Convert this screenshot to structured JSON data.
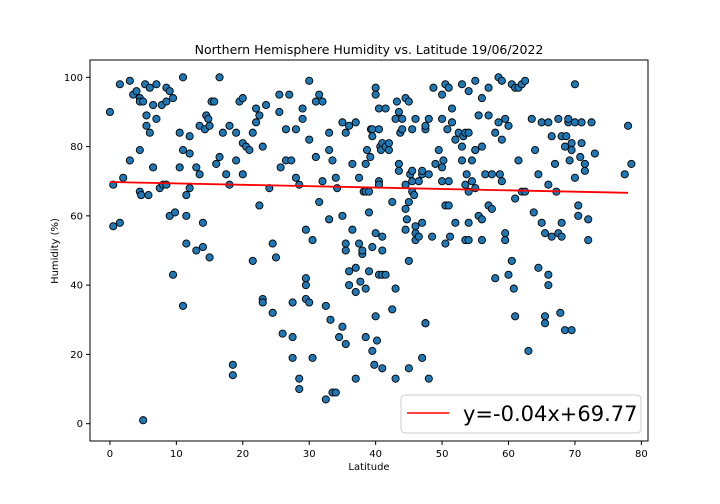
{
  "chart_data": {
    "type": "scatter",
    "title": "Northern Hemisphere Humidity vs. Latitude 19/06/2022",
    "xlabel": "Latitude",
    "ylabel": "Humidity (%)",
    "xlim": [
      -3,
      81
    ],
    "ylim": [
      -5,
      105
    ],
    "xticks": [
      0,
      10,
      20,
      30,
      40,
      50,
      60,
      70,
      80
    ],
    "yticks": [
      0,
      20,
      40,
      60,
      80,
      100
    ],
    "grid": false,
    "legend": {
      "placement": "bottom-right",
      "entry": "y=-0.04x+69.77"
    },
    "regression": {
      "slope": -0.04,
      "intercept": 69.77,
      "x_start": 0,
      "x_end": 78,
      "color": "#ff0000"
    },
    "marker_color": "#1f77b4",
    "marker_edge_color": "#000000",
    "points": [
      [
        0,
        90
      ],
      [
        0.5,
        57
      ],
      [
        0.5,
        69
      ],
      [
        1.5,
        98
      ],
      [
        1.5,
        58
      ],
      [
        2,
        71
      ],
      [
        3,
        99
      ],
      [
        3,
        76
      ],
      [
        3.5,
        95
      ],
      [
        4,
        96
      ],
      [
        4.5,
        94
      ],
      [
        4.5,
        79
      ],
      [
        4.5,
        93
      ],
      [
        4.5,
        67
      ],
      [
        4.7,
        66
      ],
      [
        5,
        1
      ],
      [
        5,
        93
      ],
      [
        5.3,
        98
      ],
      [
        5.5,
        86
      ],
      [
        5.5,
        89
      ],
      [
        5.8,
        66
      ],
      [
        6,
        97
      ],
      [
        6,
        84
      ],
      [
        6.5,
        92
      ],
      [
        6.5,
        74
      ],
      [
        7,
        98
      ],
      [
        7,
        88
      ],
      [
        7.5,
        68
      ],
      [
        7.8,
        92
      ],
      [
        8,
        69
      ],
      [
        8.5,
        97
      ],
      [
        8.5,
        93
      ],
      [
        8.5,
        69
      ],
      [
        9,
        96
      ],
      [
        9,
        60
      ],
      [
        9.5,
        94
      ],
      [
        9.5,
        43
      ],
      [
        9.8,
        61
      ],
      [
        10.5,
        84
      ],
      [
        10.5,
        74
      ],
      [
        11,
        100
      ],
      [
        11,
        79
      ],
      [
        11,
        34
      ],
      [
        11.5,
        60
      ],
      [
        11.5,
        52
      ],
      [
        11.5,
        66
      ],
      [
        12,
        83
      ],
      [
        12,
        78
      ],
      [
        12,
        68
      ],
      [
        13,
        74
      ],
      [
        13,
        50
      ],
      [
        13.5,
        86
      ],
      [
        13.5,
        72
      ],
      [
        14,
        58
      ],
      [
        14,
        51
      ],
      [
        14.3,
        85
      ],
      [
        14.5,
        89
      ],
      [
        14.8,
        88
      ],
      [
        15,
        86
      ],
      [
        15,
        48
      ],
      [
        15.3,
        93
      ],
      [
        15.7,
        93
      ],
      [
        16,
        75
      ],
      [
        16.5,
        100
      ],
      [
        16.5,
        77
      ],
      [
        17,
        84
      ],
      [
        17.5,
        72
      ],
      [
        18,
        86
      ],
      [
        18,
        69
      ],
      [
        18.5,
        17
      ],
      [
        18.5,
        14
      ],
      [
        19,
        76
      ],
      [
        19,
        84
      ],
      [
        19.5,
        93
      ],
      [
        20,
        72
      ],
      [
        20,
        81
      ],
      [
        20,
        94
      ],
      [
        20.5,
        80
      ],
      [
        21,
        79
      ],
      [
        21.5,
        84
      ],
      [
        21.5,
        47
      ],
      [
        22,
        87
      ],
      [
        22,
        91
      ],
      [
        22.5,
        63
      ],
      [
        22.5,
        89
      ],
      [
        23,
        80
      ],
      [
        23,
        36
      ],
      [
        23,
        35
      ],
      [
        23.5,
        92
      ],
      [
        24,
        68
      ],
      [
        24.5,
        32
      ],
      [
        24.5,
        52
      ],
      [
        25,
        48
      ],
      [
        25.5,
        95
      ],
      [
        25.5,
        90
      ],
      [
        25.7,
        74
      ],
      [
        26,
        26
      ],
      [
        26.5,
        85
      ],
      [
        26.5,
        76
      ],
      [
        27,
        95
      ],
      [
        27.3,
        76
      ],
      [
        27.5,
        35
      ],
      [
        27.5,
        25
      ],
      [
        27.5,
        19
      ],
      [
        28,
        85
      ],
      [
        28,
        71
      ],
      [
        28.5,
        13
      ],
      [
        28.5,
        10
      ],
      [
        28.5,
        69
      ],
      [
        29,
        91
      ],
      [
        29,
        88
      ],
      [
        29.5,
        56
      ],
      [
        29.5,
        42
      ],
      [
        29.5,
        40
      ],
      [
        29.5,
        36
      ],
      [
        30,
        99
      ],
      [
        30,
        35
      ],
      [
        30,
        82
      ],
      [
        30.5,
        19
      ],
      [
        30.5,
        53
      ],
      [
        31,
        77
      ],
      [
        31,
        93
      ],
      [
        31.5,
        95
      ],
      [
        31.5,
        64
      ],
      [
        32,
        93
      ],
      [
        32,
        70
      ],
      [
        32.5,
        7
      ],
      [
        32.5,
        34
      ],
      [
        33,
        84
      ],
      [
        33,
        79
      ],
      [
        33,
        59
      ],
      [
        33.2,
        30
      ],
      [
        33.5,
        76
      ],
      [
        33.5,
        9
      ],
      [
        34,
        9
      ],
      [
        34,
        71
      ],
      [
        34.2,
        68
      ],
      [
        34.5,
        25
      ],
      [
        35,
        28
      ],
      [
        35,
        60
      ],
      [
        35,
        87
      ],
      [
        35.5,
        84
      ],
      [
        35.5,
        50
      ],
      [
        35.5,
        52
      ],
      [
        35.5,
        23
      ],
      [
        36,
        40
      ],
      [
        36,
        44
      ],
      [
        36,
        86
      ],
      [
        36.5,
        75
      ],
      [
        36.5,
        56
      ],
      [
        37,
        13
      ],
      [
        37,
        38
      ],
      [
        37,
        45
      ],
      [
        37,
        87
      ],
      [
        37.5,
        52
      ],
      [
        37.5,
        71
      ],
      [
        37.7,
        41
      ],
      [
        38,
        49
      ],
      [
        38,
        50
      ],
      [
        38.2,
        67
      ],
      [
        38.5,
        75
      ],
      [
        38.5,
        67
      ],
      [
        38.5,
        39
      ],
      [
        38.5,
        25
      ],
      [
        38.7,
        79
      ],
      [
        39,
        44
      ],
      [
        39,
        67
      ],
      [
        39,
        61
      ],
      [
        39.2,
        77
      ],
      [
        39.3,
        85
      ],
      [
        39.5,
        85
      ],
      [
        39.5,
        83
      ],
      [
        39.5,
        51
      ],
      [
        39.5,
        21
      ],
      [
        39.8,
        17
      ],
      [
        40,
        97
      ],
      [
        40,
        31
      ],
      [
        40,
        55
      ],
      [
        40,
        95
      ],
      [
        40.2,
        24
      ],
      [
        40.5,
        70
      ],
      [
        40.5,
        43
      ],
      [
        40.5,
        69
      ],
      [
        40.5,
        91
      ],
      [
        40.5,
        85
      ],
      [
        40.7,
        80
      ],
      [
        40.8,
        79
      ],
      [
        41,
        81
      ],
      [
        41,
        54
      ],
      [
        41,
        50
      ],
      [
        41,
        43
      ],
      [
        41,
        16
      ],
      [
        41.5,
        80
      ],
      [
        41.5,
        43
      ],
      [
        41.5,
        91
      ],
      [
        42,
        79
      ],
      [
        42,
        81
      ],
      [
        42.5,
        64
      ],
      [
        42.5,
        33
      ],
      [
        43,
        88
      ],
      [
        43,
        13
      ],
      [
        43,
        39
      ],
      [
        43.2,
        93
      ],
      [
        43.5,
        90
      ],
      [
        43.5,
        75
      ],
      [
        43.5,
        73
      ],
      [
        43.7,
        84
      ],
      [
        44,
        85
      ],
      [
        44,
        88
      ],
      [
        44.5,
        94
      ],
      [
        44.5,
        62
      ],
      [
        44.5,
        56
      ],
      [
        44.5,
        69
      ],
      [
        44.7,
        59
      ],
      [
        45,
        64
      ],
      [
        45,
        93
      ],
      [
        45,
        47
      ],
      [
        45,
        16
      ],
      [
        45.2,
        72
      ],
      [
        45.5,
        70
      ],
      [
        45.5,
        85
      ],
      [
        45.5,
        73
      ],
      [
        45.5,
        67
      ],
      [
        45.8,
        66
      ],
      [
        46,
        88
      ],
      [
        46,
        55
      ],
      [
        46,
        53
      ],
      [
        46,
        57
      ],
      [
        46.5,
        70
      ],
      [
        46.5,
        54
      ],
      [
        47,
        72
      ],
      [
        47,
        19
      ],
      [
        47,
        73
      ],
      [
        47,
        58
      ],
      [
        47.5,
        85
      ],
      [
        47.5,
        86
      ],
      [
        47.5,
        29
      ],
      [
        47.5,
        29
      ],
      [
        48,
        88
      ],
      [
        48,
        13
      ],
      [
        48,
        72
      ],
      [
        48.5,
        54
      ],
      [
        48.7,
        97
      ],
      [
        49,
        75
      ],
      [
        49.5,
        79
      ],
      [
        50,
        70
      ],
      [
        50,
        74
      ],
      [
        50,
        95
      ],
      [
        50,
        88
      ],
      [
        50.2,
        76
      ],
      [
        50.5,
        52
      ],
      [
        50.5,
        63
      ],
      [
        50.5,
        98
      ],
      [
        50.8,
        85
      ],
      [
        51,
        97
      ],
      [
        51,
        63
      ],
      [
        51,
        70
      ],
      [
        51.2,
        54
      ],
      [
        51.5,
        91
      ],
      [
        51.5,
        87
      ],
      [
        52,
        58
      ],
      [
        52,
        82
      ],
      [
        52.5,
        84
      ],
      [
        53,
        98
      ],
      [
        53,
        80
      ],
      [
        53,
        76
      ],
      [
        53.2,
        83
      ],
      [
        53.5,
        84
      ],
      [
        53.5,
        53
      ],
      [
        53.5,
        69
      ],
      [
        53.7,
        72
      ],
      [
        54,
        96
      ],
      [
        54,
        58
      ],
      [
        54,
        53
      ],
      [
        54,
        67
      ],
      [
        54,
        84
      ],
      [
        54.5,
        76
      ],
      [
        54.5,
        70
      ],
      [
        55,
        79
      ],
      [
        55,
        99
      ],
      [
        55,
        68
      ],
      [
        55,
        79
      ],
      [
        55.5,
        60
      ],
      [
        55.5,
        89
      ],
      [
        56,
        59
      ],
      [
        56,
        94
      ],
      [
        56,
        53
      ],
      [
        56,
        80
      ],
      [
        56.5,
        72
      ],
      [
        57,
        97
      ],
      [
        57,
        63
      ],
      [
        57,
        89
      ],
      [
        57.5,
        62
      ],
      [
        57.5,
        72
      ],
      [
        58,
        84
      ],
      [
        58,
        42
      ],
      [
        58.5,
        100
      ],
      [
        58.5,
        87
      ],
      [
        58.7,
        72
      ],
      [
        59,
        82
      ],
      [
        59,
        99
      ],
      [
        59,
        70
      ],
      [
        59.5,
        88
      ],
      [
        59.5,
        55
      ],
      [
        59.5,
        53
      ],
      [
        60,
        86
      ],
      [
        60,
        43
      ],
      [
        60.5,
        47
      ],
      [
        60.5,
        98
      ],
      [
        60.8,
        39
      ],
      [
        61,
        65
      ],
      [
        61,
        31
      ],
      [
        61,
        97
      ],
      [
        61.5,
        97
      ],
      [
        61.5,
        76
      ],
      [
        62,
        67
      ],
      [
        62,
        98
      ],
      [
        62.5,
        99
      ],
      [
        62.5,
        67
      ],
      [
        63,
        21
      ],
      [
        63.5,
        88
      ],
      [
        63.8,
        61
      ],
      [
        64,
        79
      ],
      [
        64.5,
        45
      ],
      [
        64.5,
        72
      ],
      [
        65,
        87
      ],
      [
        65,
        58
      ],
      [
        65.5,
        31
      ],
      [
        65.5,
        29
      ],
      [
        65.5,
        55
      ],
      [
        66,
        69
      ],
      [
        66,
        87
      ],
      [
        66,
        40
      ],
      [
        66,
        43
      ],
      [
        66.5,
        54
      ],
      [
        66.5,
        83
      ],
      [
        67,
        75
      ],
      [
        67.2,
        67
      ],
      [
        67.5,
        55
      ],
      [
        67.5,
        88
      ],
      [
        67.8,
        32
      ],
      [
        68,
        83
      ],
      [
        68,
        54
      ],
      [
        68,
        58
      ],
      [
        68.5,
        80
      ],
      [
        68.5,
        27
      ],
      [
        68.7,
        83
      ],
      [
        69,
        87
      ],
      [
        69,
        88
      ],
      [
        69.2,
        76
      ],
      [
        69.5,
        81
      ],
      [
        69.5,
        27
      ],
      [
        69.5,
        79
      ],
      [
        70,
        98
      ],
      [
        70,
        71
      ],
      [
        70,
        87
      ],
      [
        70.5,
        63
      ],
      [
        70.5,
        60
      ],
      [
        70.8,
        77
      ],
      [
        71,
        87
      ],
      [
        71,
        81
      ],
      [
        71.5,
        73
      ],
      [
        71.5,
        75
      ],
      [
        72,
        59
      ],
      [
        72,
        53
      ],
      [
        72.5,
        87
      ],
      [
        73,
        78
      ],
      [
        77.5,
        72
      ],
      [
        78,
        86
      ],
      [
        78.5,
        75
      ]
    ]
  }
}
